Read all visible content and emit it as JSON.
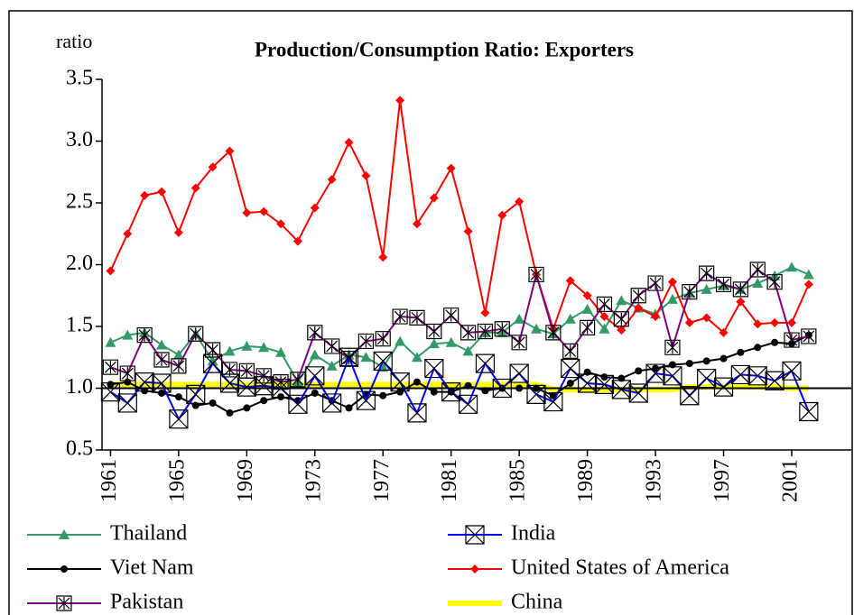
{
  "chart_data": {
    "type": "line",
    "title": "Production/Consumption Ratio: Exporters",
    "y_label": "ratio",
    "x": [
      1961,
      1962,
      1963,
      1964,
      1965,
      1966,
      1967,
      1968,
      1969,
      1970,
      1971,
      1972,
      1973,
      1974,
      1975,
      1976,
      1977,
      1978,
      1979,
      1980,
      1981,
      1982,
      1983,
      1984,
      1985,
      1986,
      1987,
      1988,
      1989,
      1990,
      1991,
      1992,
      1993,
      1994,
      1995,
      1996,
      1997,
      1998,
      1999,
      2000,
      2001,
      2002
    ],
    "xlim": [
      1960.5,
      2004.5
    ],
    "xticks": [
      1961,
      1965,
      1969,
      1973,
      1977,
      1981,
      1985,
      1989,
      1993,
      1997,
      2001
    ],
    "ylim": [
      0.5,
      3.5
    ],
    "yticks": [
      {
        "value": 0.5,
        "label": "0.5"
      },
      {
        "value": 1,
        "label": "1.0"
      },
      {
        "value": 1.5,
        "label": "1.5"
      },
      {
        "value": 2,
        "label": "2.0"
      },
      {
        "value": 2.5,
        "label": "2.5"
      },
      {
        "value": 3,
        "label": "3.0"
      },
      {
        "value": 3.5,
        "label": "3.5"
      }
    ],
    "x_axis_at": 1,
    "series": [
      {
        "name": "Thailand",
        "color": "#339966",
        "marker": "triangle",
        "values": [
          1.37,
          1.43,
          1.45,
          1.35,
          1.27,
          1.44,
          1.22,
          1.3,
          1.34,
          1.33,
          1.29,
          1.05,
          1.27,
          1.18,
          1.27,
          1.25,
          1.17,
          1.38,
          1.25,
          1.36,
          1.37,
          1.3,
          1.45,
          1.45,
          1.56,
          1.48,
          1.44,
          1.56,
          1.64,
          1.48,
          1.71,
          1.65,
          1.6,
          1.72,
          1.77,
          1.8,
          1.83,
          1.8,
          1.85,
          1.91,
          1.98,
          1.92
        ]
      },
      {
        "name": "India",
        "color": "#0000ff",
        "marker": "boxx",
        "values": [
          0.97,
          0.88,
          1.05,
          1.04,
          0.75,
          0.95,
          1.2,
          1.04,
          1.01,
          1.02,
          1.0,
          0.87,
          1.1,
          0.88,
          1.25,
          0.9,
          1.22,
          1.05,
          0.8,
          1.16,
          0.97,
          0.87,
          1.2,
          1.0,
          1.12,
          0.95,
          0.89,
          1.16,
          1.04,
          1.03,
          0.99,
          0.96,
          1.12,
          1.1,
          0.94,
          1.08,
          1.01,
          1.11,
          1.1,
          1.06,
          1.14,
          0.81
        ]
      },
      {
        "name": "Viet Nam",
        "color": "#000000",
        "marker": "circle",
        "values": [
          1.03,
          1.05,
          0.98,
          0.96,
          0.93,
          0.86,
          0.88,
          0.8,
          0.84,
          0.9,
          0.93,
          0.9,
          0.96,
          0.9,
          0.84,
          0.95,
          0.94,
          0.97,
          1.05,
          0.97,
          0.97,
          1.02,
          0.98,
          1.0,
          1.0,
          1.0,
          0.94,
          1.04,
          1.13,
          1.09,
          1.08,
          1.14,
          1.16,
          1.19,
          1.2,
          1.22,
          1.24,
          1.29,
          1.33,
          1.37,
          1.36,
          1.43
        ]
      },
      {
        "name": "United States of America",
        "color": "#ff0000",
        "marker": "diamond",
        "values": [
          1.95,
          2.25,
          2.56,
          2.59,
          2.26,
          2.62,
          2.79,
          2.92,
          2.42,
          2.43,
          2.33,
          2.19,
          2.46,
          2.69,
          2.99,
          2.72,
          2.06,
          3.33,
          2.33,
          2.54,
          2.78,
          2.27,
          1.61,
          2.4,
          2.51,
          1.92,
          1.48,
          1.87,
          1.75,
          1.58,
          1.47,
          1.65,
          1.58,
          1.86,
          1.53,
          1.57,
          1.45,
          1.7,
          1.52,
          1.53,
          1.53,
          1.84
        ]
      },
      {
        "name": "Pakistan",
        "color": "#800080",
        "marker": "boxstar",
        "values": [
          1.17,
          1.12,
          1.43,
          1.23,
          1.18,
          1.44,
          1.31,
          1.15,
          1.14,
          1.1,
          1.05,
          1.07,
          1.45,
          1.34,
          1.24,
          1.38,
          1.4,
          1.58,
          1.57,
          1.46,
          1.59,
          1.45,
          1.46,
          1.48,
          1.37,
          1.92,
          1.45,
          1.3,
          1.49,
          1.68,
          1.56,
          1.75,
          1.85,
          1.33,
          1.78,
          1.93,
          1.84,
          1.8,
          1.96,
          1.86,
          1.39,
          1.42
        ]
      },
      {
        "name": "China",
        "color": "#ffff00",
        "marker": "none",
        "values": [
          1.03,
          1.03,
          1.03,
          1.03,
          1.03,
          1.03,
          1.03,
          1.03,
          1.03,
          1.03,
          1.03,
          1.03,
          1.03,
          1.03,
          1.03,
          1.03,
          1.03,
          1.03,
          1.03,
          1.03,
          1.03,
          1.03,
          1.03,
          1.03,
          1.03,
          1.03,
          0.99,
          0.99,
          0.99,
          0.99,
          0.99,
          0.99,
          0.99,
          0.99,
          1.01,
          1.01,
          1.01,
          1.01,
          1.01,
          1.01,
          1.0,
          1.0
        ]
      }
    ]
  }
}
